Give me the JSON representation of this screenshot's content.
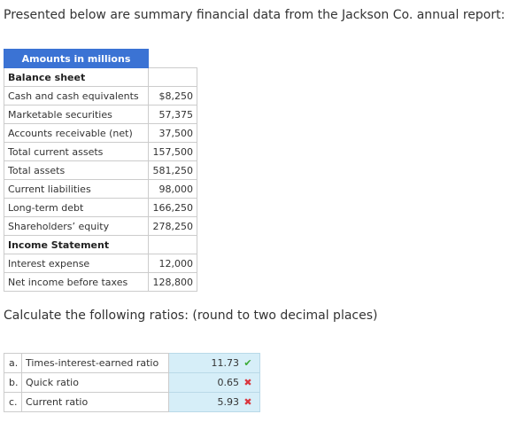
{
  "intro_text": "Presented below are summary financial data from the Jackson Co. annual report:",
  "table": {
    "header": "Amounts in millions",
    "rows": [
      {
        "label": "Balance sheet",
        "value": "",
        "section": true
      },
      {
        "label": "Cash and cash equivalents",
        "value": "$8,250"
      },
      {
        "label": "Marketable securities",
        "value": "57,375"
      },
      {
        "label": "Accounts receivable (net)",
        "value": "37,500"
      },
      {
        "label": "Total current assets",
        "value": "157,500"
      },
      {
        "label": "Total assets",
        "value": "581,250"
      },
      {
        "label": "Current liabilities",
        "value": "98,000"
      },
      {
        "label": "Long-term debt",
        "value": "166,250"
      },
      {
        "label": "Shareholders’ equity",
        "value": "278,250"
      },
      {
        "label": "Income Statement",
        "value": "",
        "section": true
      },
      {
        "label": "Interest expense",
        "value": "12,000"
      },
      {
        "label": "Net income before taxes",
        "value": "128,800"
      }
    ]
  },
  "question_text": "Calculate the following ratios: (round to two decimal places)",
  "ratios": [
    {
      "letter": "a.",
      "label": "Times-interest-earned ratio",
      "answer": "11.73",
      "mark": "✔",
      "status": "correct",
      "mark_icon": "check-icon",
      "mark_color": "#3aaa35"
    },
    {
      "letter": "b.",
      "label": "Quick ratio",
      "answer": "0.65",
      "mark": "✖",
      "status": "wrong",
      "mark_icon": "cross-icon",
      "mark_color": "#d9363e"
    },
    {
      "letter": "c.",
      "label": "Current ratio",
      "answer": "5.93",
      "mark": "✖",
      "status": "wrong",
      "mark_icon": "cross-icon",
      "mark_color": "#d9363e"
    }
  ],
  "colors": {
    "header_bg": "#3b73d4",
    "answer_bg": "#d6eef8"
  }
}
